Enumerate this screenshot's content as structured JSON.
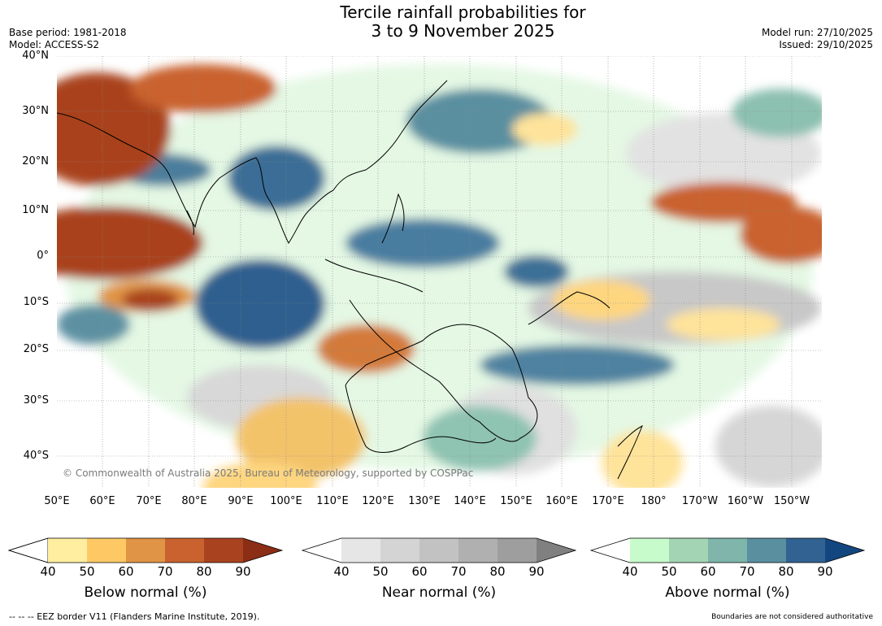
{
  "title_line1": "Tercile rainfall probabilities for",
  "title_line2": "3 to 9 November 2025",
  "base_period": "Base period: 1981-2018",
  "model": "Model: ACCESS-S2",
  "model_run": "Model run: 27/10/2025",
  "issued": "Issued: 29/10/2025",
  "copyright": "© Commonwealth of Australia 2025, Bureau of Meteorology, supported by COSPPac",
  "lat_labels": [
    "40°N",
    "30°N",
    "20°N",
    "10°N",
    "0°",
    "10°S",
    "20°S",
    "30°S",
    "40°S"
  ],
  "lon_labels": [
    "50°E",
    "60°E",
    "70°E",
    "80°E",
    "90°E",
    "100°E",
    "110°E",
    "120°E",
    "130°E",
    "140°E",
    "150°E",
    "160°E",
    "170°E",
    "180°",
    "170°W",
    "160°W",
    "150°W"
  ],
  "colorbars": [
    {
      "caption": "Below normal (%)",
      "ticks": [
        "40",
        "50",
        "60",
        "70",
        "80",
        "90"
      ],
      "colors": [
        "#ffffff",
        "#ffeda0",
        "#fec965",
        "#e09445",
        "#c9622e",
        "#a9421f",
        "#8c2d15"
      ]
    },
    {
      "caption": "Near normal (%)",
      "ticks": [
        "40",
        "50",
        "60",
        "70",
        "80",
        "90"
      ],
      "colors": [
        "#ffffff",
        "#e6e6e6",
        "#d4d4d4",
        "#c2c2c2",
        "#b0b0b0",
        "#9e9e9e",
        "#808080"
      ]
    },
    {
      "caption": "Above normal (%)",
      "ticks": [
        "40",
        "50",
        "60",
        "70",
        "80",
        "90"
      ],
      "colors": [
        "#ffffff",
        "#c7fbcb",
        "#a3d5b4",
        "#7fb5ab",
        "#5a8fa0",
        "#326292",
        "#13467f"
      ]
    }
  ],
  "eez_note": "--  --  -- EEZ border V11 (Flanders Marine Institute, 2019).",
  "boundaries_note": "Boundaries are not considered authoritative"
}
